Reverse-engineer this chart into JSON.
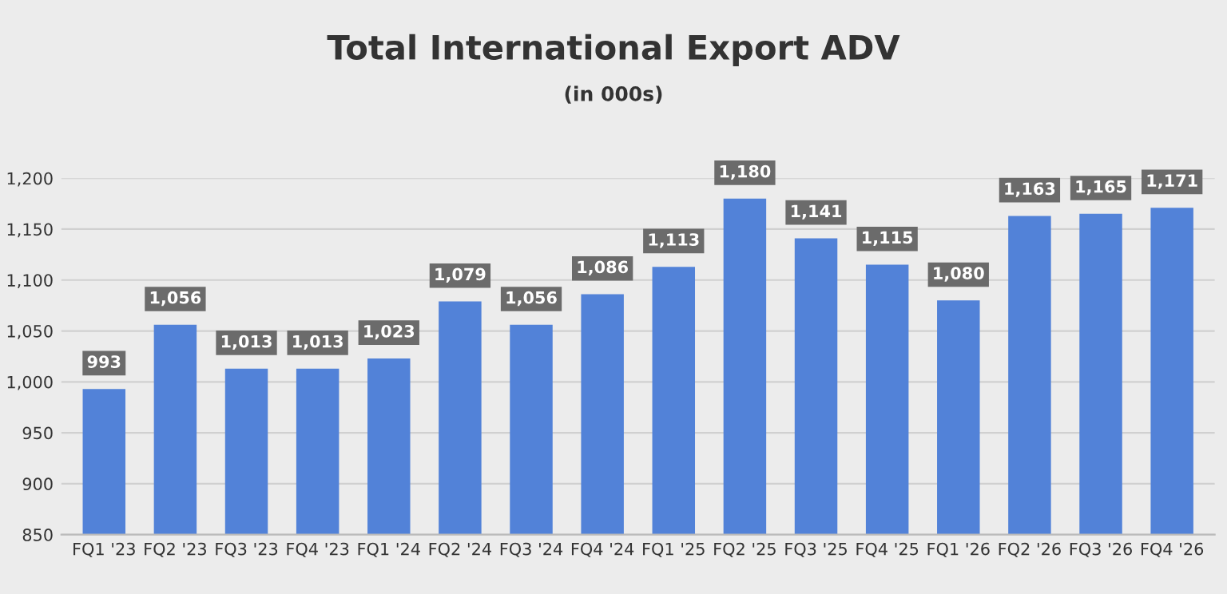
{
  "chart_data": {
    "type": "bar",
    "title": "Total International Export ADV",
    "subtitle": "(in 000s)",
    "categories": [
      "FQ1 '23",
      "FQ2 '23",
      "FQ3 '23",
      "FQ4 '23",
      "FQ1 '24",
      "FQ2 '24",
      "FQ3 '24",
      "FQ4 '24",
      "FQ1 '25",
      "FQ2 '25",
      "FQ3 '25",
      "FQ4 '25",
      "FQ1 '26",
      "FQ2 '26",
      "FQ3 '26",
      "FQ4 '26"
    ],
    "values": [
      993,
      1056,
      1013,
      1013,
      1023,
      1079,
      1056,
      1086,
      1113,
      1180,
      1141,
      1115,
      1080,
      1163,
      1165,
      1171
    ],
    "value_labels": [
      "993",
      "1,056",
      "1,013",
      "1,013",
      "1,023",
      "1,079",
      "1,056",
      "1,086",
      "1,113",
      "1,180",
      "1,141",
      "1,115",
      "1,080",
      "1,163",
      "1,165",
      "1,171"
    ],
    "color": "#5282d8",
    "ylim": [
      850,
      1200
    ],
    "yticks": [
      850,
      900,
      950,
      {
        "value": 1000,
        "label": "1,000"
      },
      {
        "value": 1050,
        "label": "1,050"
      },
      {
        "value": 1100,
        "label": "1,100"
      },
      {
        "value": 1150,
        "label": "1,150"
      },
      {
        "value": 1200,
        "label": "1,200"
      }
    ],
    "grid": "y",
    "legend": false
  }
}
